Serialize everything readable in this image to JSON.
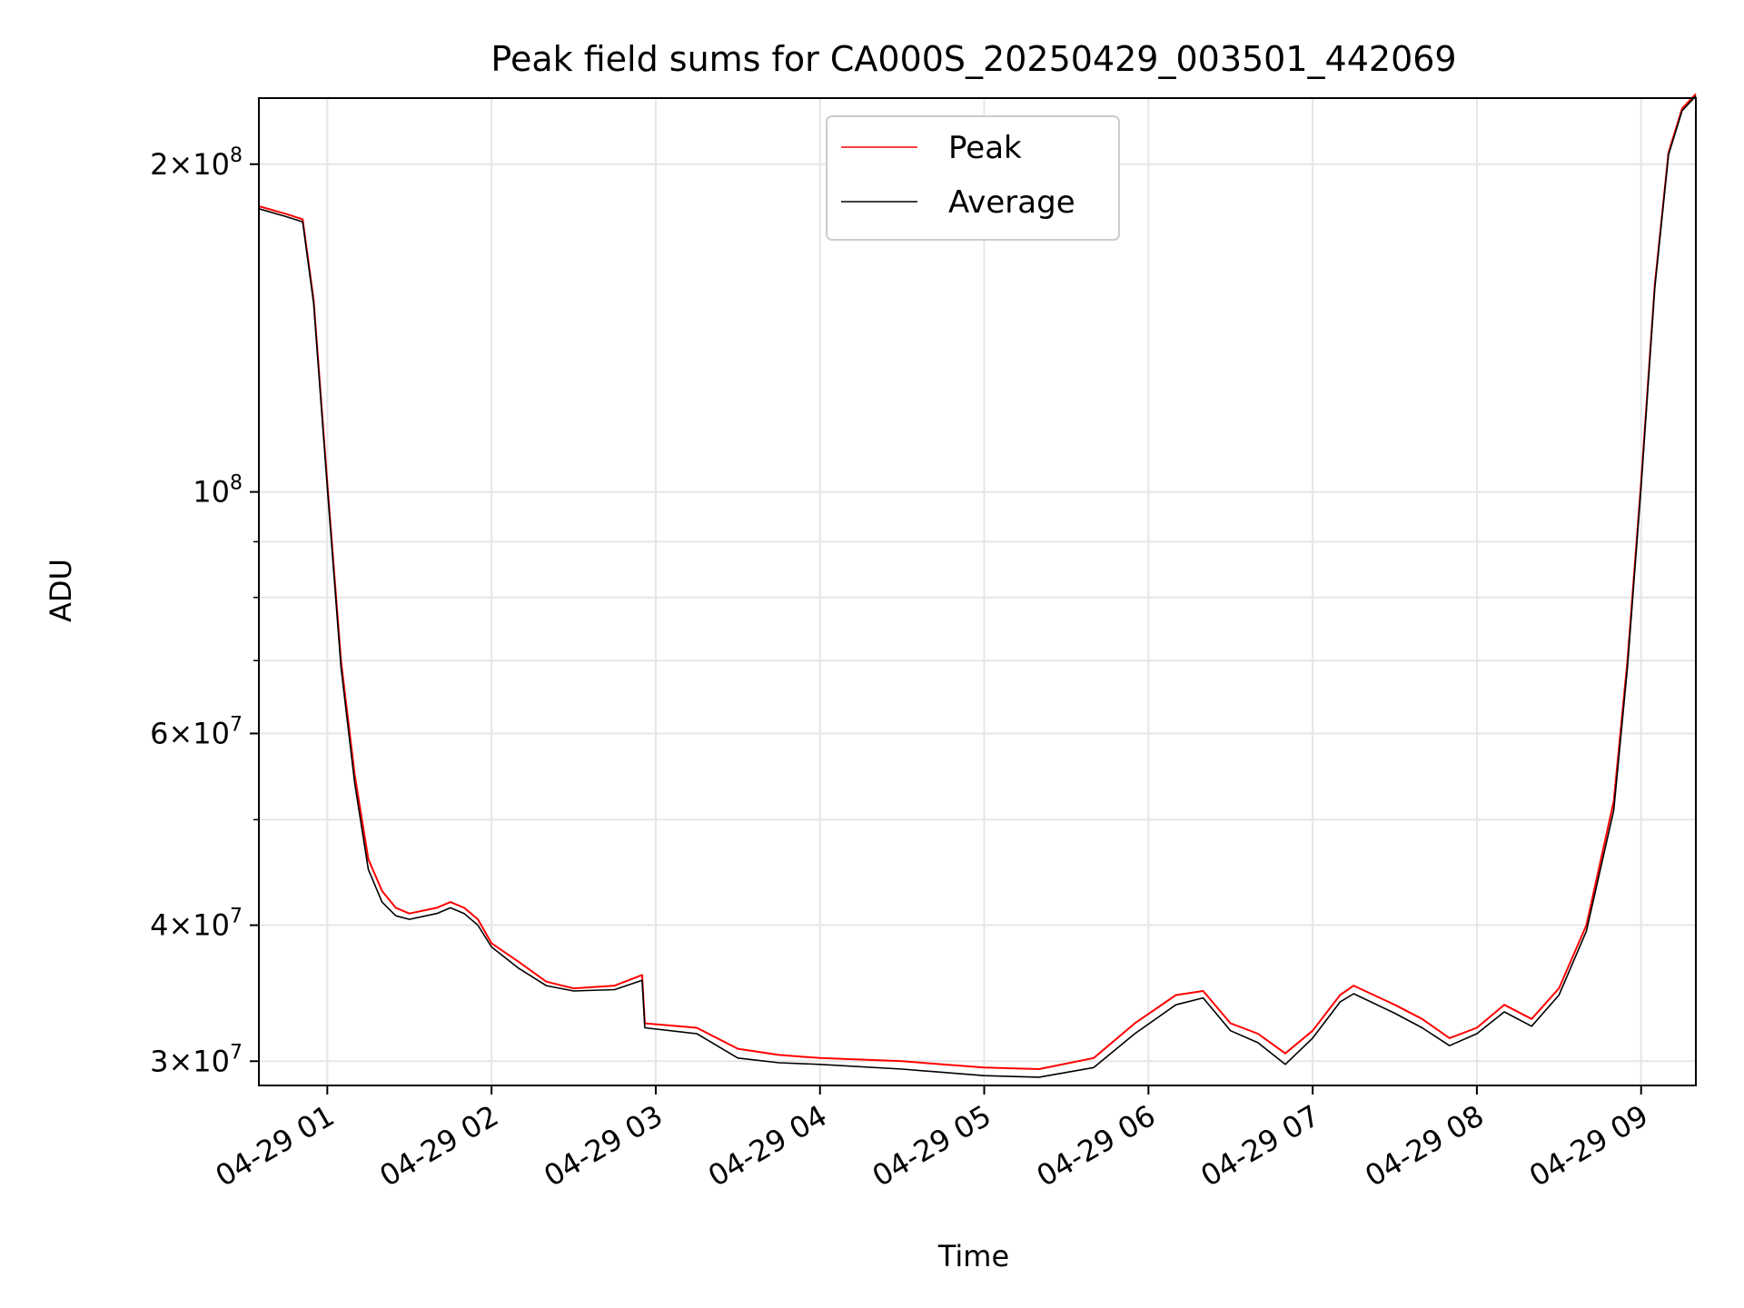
{
  "chart_data": {
    "type": "line",
    "title": "Peak field sums for CA000S_20250429_003501_442069",
    "xlabel": "Time",
    "ylabel": "ADU",
    "x_type": "time",
    "x_range": [
      "2025-04-29 00:35",
      "2025-04-29 09:20"
    ],
    "y_scale": "log",
    "ylim": [
      28500000,
      230000000
    ],
    "grid": true,
    "legend_position": "upper center",
    "x_ticks": [
      {
        "value": "2025-04-29 01:00",
        "label": "04-29 01"
      },
      {
        "value": "2025-04-29 02:00",
        "label": "04-29 02"
      },
      {
        "value": "2025-04-29 03:00",
        "label": "04-29 03"
      },
      {
        "value": "2025-04-29 04:00",
        "label": "04-29 04"
      },
      {
        "value": "2025-04-29 05:00",
        "label": "04-29 05"
      },
      {
        "value": "2025-04-29 06:00",
        "label": "04-29 06"
      },
      {
        "value": "2025-04-29 07:00",
        "label": "04-29 07"
      },
      {
        "value": "2025-04-29 08:00",
        "label": "04-29 08"
      },
      {
        "value": "2025-04-29 09:00",
        "label": "04-29 09"
      }
    ],
    "y_major_ticks": [
      {
        "value": 30000000,
        "mant": "3",
        "exp": "7"
      },
      {
        "value": 40000000,
        "mant": "4",
        "exp": "7"
      },
      {
        "value": 60000000,
        "mant": "6",
        "exp": "7"
      },
      {
        "value": 100000000,
        "mant": "",
        "exp": "8"
      },
      {
        "value": 200000000,
        "mant": "2",
        "exp": "8"
      }
    ],
    "y_minor_ticks": [
      50000000,
      70000000,
      80000000,
      90000000
    ],
    "series": [
      {
        "name": "Peak",
        "color": "#ff0000",
        "data": [
          [
            "2025-04-29 00:35",
            183000000
          ],
          [
            "2025-04-29 00:45",
            180000000
          ],
          [
            "2025-04-29 00:51",
            178000000
          ],
          [
            "2025-04-29 00:55",
            150000000
          ],
          [
            "2025-04-29 01:00",
            102000000
          ],
          [
            "2025-04-29 01:05",
            70000000
          ],
          [
            "2025-04-29 01:10",
            55000000
          ],
          [
            "2025-04-29 01:15",
            46000000
          ],
          [
            "2025-04-29 01:20",
            43000000
          ],
          [
            "2025-04-29 01:25",
            41500000
          ],
          [
            "2025-04-29 01:30",
            41000000
          ],
          [
            "2025-04-29 01:40",
            41500000
          ],
          [
            "2025-04-29 01:45",
            42000000
          ],
          [
            "2025-04-29 01:50",
            41500000
          ],
          [
            "2025-04-29 01:55",
            40500000
          ],
          [
            "2025-04-29 02:00",
            38500000
          ],
          [
            "2025-04-29 02:10",
            37000000
          ],
          [
            "2025-04-29 02:20",
            35500000
          ],
          [
            "2025-04-29 02:30",
            35000000
          ],
          [
            "2025-04-29 02:45",
            35200000
          ],
          [
            "2025-04-29 02:55",
            36000000
          ],
          [
            "2025-04-29 02:56",
            32500000
          ],
          [
            "2025-04-29 03:15",
            32200000
          ],
          [
            "2025-04-29 03:30",
            30800000
          ],
          [
            "2025-04-29 03:45",
            30400000
          ],
          [
            "2025-04-29 04:00",
            30200000
          ],
          [
            "2025-04-29 04:30",
            30000000
          ],
          [
            "2025-04-29 05:00",
            29600000
          ],
          [
            "2025-04-29 05:20",
            29500000
          ],
          [
            "2025-04-29 05:40",
            30200000
          ],
          [
            "2025-04-29 05:55",
            32500000
          ],
          [
            "2025-04-29 06:10",
            34500000
          ],
          [
            "2025-04-29 06:20",
            34800000
          ],
          [
            "2025-04-29 06:30",
            32500000
          ],
          [
            "2025-04-29 06:40",
            31800000
          ],
          [
            "2025-04-29 06:50",
            30500000
          ],
          [
            "2025-04-29 07:00",
            32000000
          ],
          [
            "2025-04-29 07:10",
            34500000
          ],
          [
            "2025-04-29 07:15",
            35200000
          ],
          [
            "2025-04-29 07:30",
            33800000
          ],
          [
            "2025-04-29 07:40",
            32800000
          ],
          [
            "2025-04-29 07:50",
            31500000
          ],
          [
            "2025-04-29 08:00",
            32200000
          ],
          [
            "2025-04-29 08:10",
            33800000
          ],
          [
            "2025-04-29 08:20",
            32800000
          ],
          [
            "2025-04-29 08:30",
            35000000
          ],
          [
            "2025-04-29 08:40",
            40000000
          ],
          [
            "2025-04-29 08:50",
            52000000
          ],
          [
            "2025-04-29 08:55",
            70000000
          ],
          [
            "2025-04-29 09:00",
            102000000
          ],
          [
            "2025-04-29 09:05",
            155000000
          ],
          [
            "2025-04-29 09:10",
            205000000
          ],
          [
            "2025-04-29 09:15",
            225000000
          ],
          [
            "2025-04-29 09:20",
            232000000
          ]
        ]
      },
      {
        "name": "Average",
        "color": "#000000",
        "data": [
          [
            "2025-04-29 00:35",
            182000000
          ],
          [
            "2025-04-29 00:45",
            179000000
          ],
          [
            "2025-04-29 00:51",
            177000000
          ],
          [
            "2025-04-29 00:55",
            149000000
          ],
          [
            "2025-04-29 01:00",
            101000000
          ],
          [
            "2025-04-29 01:05",
            69000000
          ],
          [
            "2025-04-29 01:10",
            54000000
          ],
          [
            "2025-04-29 01:15",
            45000000
          ],
          [
            "2025-04-29 01:20",
            42000000
          ],
          [
            "2025-04-29 01:25",
            40800000
          ],
          [
            "2025-04-29 01:30",
            40500000
          ],
          [
            "2025-04-29 01:40",
            41000000
          ],
          [
            "2025-04-29 01:45",
            41500000
          ],
          [
            "2025-04-29 01:50",
            41000000
          ],
          [
            "2025-04-29 01:55",
            40000000
          ],
          [
            "2025-04-29 02:00",
            38200000
          ],
          [
            "2025-04-29 02:10",
            36500000
          ],
          [
            "2025-04-29 02:20",
            35200000
          ],
          [
            "2025-04-29 02:30",
            34800000
          ],
          [
            "2025-04-29 02:45",
            34900000
          ],
          [
            "2025-04-29 02:55",
            35600000
          ],
          [
            "2025-04-29 02:56",
            32200000
          ],
          [
            "2025-04-29 03:15",
            31800000
          ],
          [
            "2025-04-29 03:30",
            30200000
          ],
          [
            "2025-04-29 03:45",
            29900000
          ],
          [
            "2025-04-29 04:00",
            29800000
          ],
          [
            "2025-04-29 04:30",
            29500000
          ],
          [
            "2025-04-29 05:00",
            29100000
          ],
          [
            "2025-04-29 05:20",
            29000000
          ],
          [
            "2025-04-29 05:40",
            29600000
          ],
          [
            "2025-04-29 05:55",
            31800000
          ],
          [
            "2025-04-29 06:10",
            33800000
          ],
          [
            "2025-04-29 06:20",
            34300000
          ],
          [
            "2025-04-29 06:30",
            32000000
          ],
          [
            "2025-04-29 06:40",
            31200000
          ],
          [
            "2025-04-29 06:50",
            29800000
          ],
          [
            "2025-04-29 07:00",
            31500000
          ],
          [
            "2025-04-29 07:10",
            34000000
          ],
          [
            "2025-04-29 07:15",
            34600000
          ],
          [
            "2025-04-29 07:30",
            33200000
          ],
          [
            "2025-04-29 07:40",
            32200000
          ],
          [
            "2025-04-29 07:50",
            31000000
          ],
          [
            "2025-04-29 08:00",
            31800000
          ],
          [
            "2025-04-29 08:10",
            33300000
          ],
          [
            "2025-04-29 08:20",
            32300000
          ],
          [
            "2025-04-29 08:30",
            34500000
          ],
          [
            "2025-04-29 08:40",
            39500000
          ],
          [
            "2025-04-29 08:50",
            51000000
          ],
          [
            "2025-04-29 08:55",
            69000000
          ],
          [
            "2025-04-29 09:00",
            101000000
          ],
          [
            "2025-04-29 09:05",
            154000000
          ],
          [
            "2025-04-29 09:10",
            204000000
          ],
          [
            "2025-04-29 09:15",
            224000000
          ],
          [
            "2025-04-29 09:20",
            231000000
          ]
        ]
      }
    ]
  }
}
